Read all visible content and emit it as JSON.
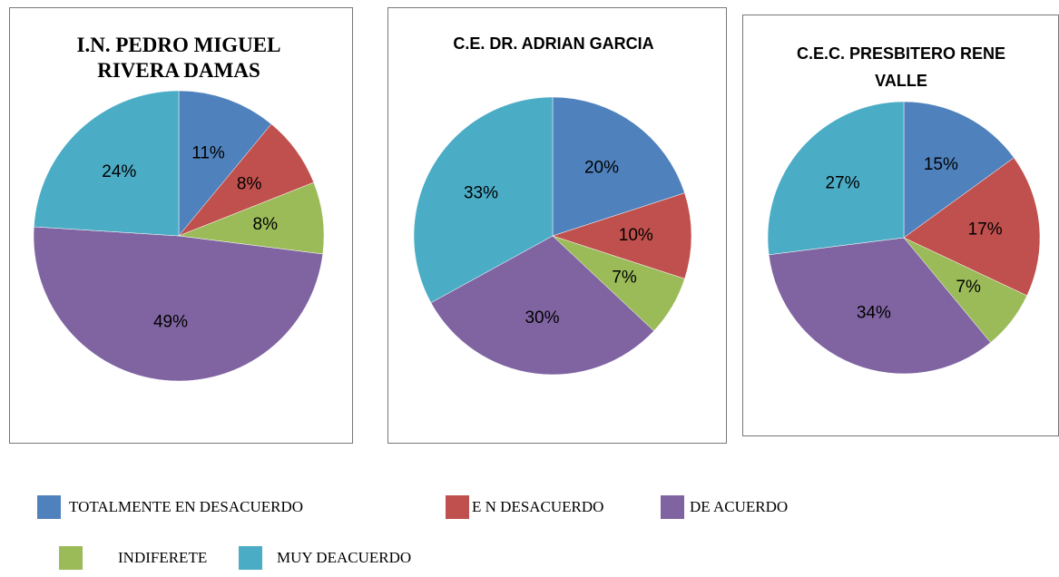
{
  "chart_data": [
    {
      "type": "pie",
      "title": "I.N. PEDRO MIGUEL RIVERA DAMAS",
      "categories": [
        "TOTALMENTE EN DESACUERDO",
        "E N DESACUERDO",
        "INDIFERETE",
        "DE ACUERDO",
        "MUY DEACUERDO"
      ],
      "colors": [
        "#4f81bd",
        "#c0504d",
        "#9bbb59",
        "#8064a2",
        "#4bacc6"
      ],
      "values": [
        11,
        8,
        8,
        49,
        24
      ],
      "value_labels": [
        "11%",
        "8%",
        "8%",
        "49%",
        "24%"
      ]
    },
    {
      "type": "pie",
      "title": "C.E. DR. ADRIAN GARCIA",
      "categories": [
        "TOTALMENTE EN DESACUERDO",
        "E N DESACUERDO",
        "INDIFERETE",
        "DE ACUERDO",
        "MUY DEACUERDO"
      ],
      "colors": [
        "#4f81bd",
        "#c0504d",
        "#9bbb59",
        "#8064a2",
        "#4bacc6"
      ],
      "values": [
        20,
        10,
        7,
        30,
        33
      ],
      "value_labels": [
        "20%",
        "10%",
        "7%",
        "30%",
        "33%"
      ]
    },
    {
      "type": "pie",
      "title": "C.E.C. PRESBITERO RENE VALLE",
      "categories": [
        "TOTALMENTE EN DESACUERDO",
        "E N DESACUERDO",
        "INDIFERETE",
        "DE ACUERDO",
        "MUY DEACUERDO"
      ],
      "colors": [
        "#4f81bd",
        "#c0504d",
        "#9bbb59",
        "#8064a2",
        "#4bacc6"
      ],
      "values": [
        15,
        17,
        7,
        34,
        27
      ],
      "value_labels": [
        "15%",
        "17%",
        "7%",
        "34%",
        "27%"
      ]
    }
  ]
}
